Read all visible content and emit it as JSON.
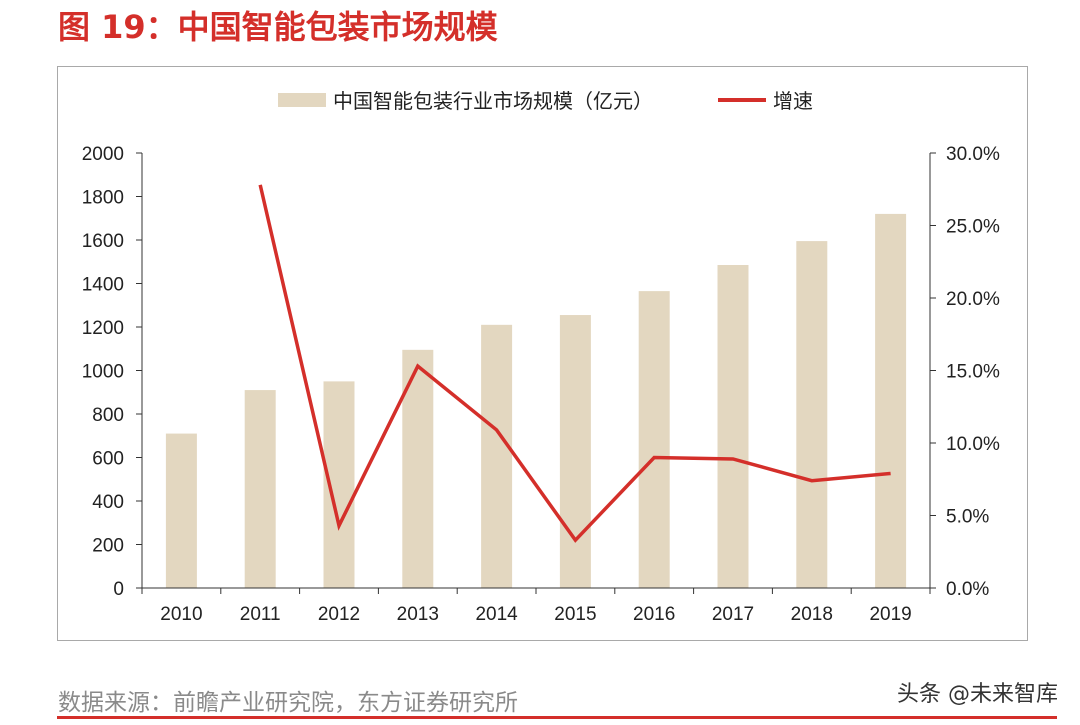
{
  "figure": {
    "title": "图 19：中国智能包装市场规模",
    "source": "数据来源：前瞻产业研究院，东方证券研究所",
    "watermark": "头条 @未来智库"
  },
  "chart_data": {
    "type": "bar",
    "categories": [
      "2010",
      "2011",
      "2012",
      "2013",
      "2014",
      "2015",
      "2016",
      "2017",
      "2018",
      "2019"
    ],
    "series": [
      {
        "name": "中国智能包装行业市场规模（亿元）",
        "kind": "bar",
        "axis": "left",
        "color": "#e3d7c0",
        "values": [
          710,
          910,
          950,
          1095,
          1210,
          1255,
          1365,
          1485,
          1595,
          1720
        ]
      },
      {
        "name": "增速",
        "kind": "line",
        "axis": "right",
        "color": "#d42f2a",
        "values": [
          null,
          27.8,
          4.3,
          15.3,
          10.9,
          3.3,
          9.0,
          8.9,
          7.4,
          7.9
        ]
      }
    ],
    "y_left": {
      "min": 0,
      "max": 2000,
      "ticks": [
        "0",
        "200",
        "400",
        "600",
        "800",
        "1000",
        "1200",
        "1400",
        "1600",
        "1800",
        "2000"
      ]
    },
    "y_right": {
      "min": 0,
      "max": 30,
      "ticks": [
        "0.0%",
        "5.0%",
        "10.0%",
        "15.0%",
        "20.0%",
        "25.0%",
        "30.0%"
      ]
    },
    "legend": "top-center",
    "grid": false
  }
}
